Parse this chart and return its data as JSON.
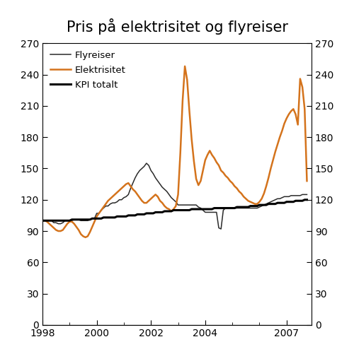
{
  "title": "Pris på elektrisitet og flyreiser",
  "ylim": [
    0,
    270
  ],
  "yticks": [
    0,
    30,
    60,
    90,
    120,
    150,
    180,
    210,
    240,
    270
  ],
  "xlim_start": 1998.0,
  "xlim_end": 2007.92,
  "xticks": [
    1998,
    2000,
    2002,
    2004,
    2007
  ],
  "xtick_labels": [
    "1998",
    "2000",
    "2002",
    "2004",
    "2007"
  ],
  "color_flyreiser": "#2a2a2a",
  "color_elektrisitet": "#D4731C",
  "color_kpi": "#000000",
  "lw_flyreiser": 1.1,
  "lw_elektrisitet": 1.8,
  "lw_kpi": 2.2,
  "legend_flyreiser": "Flyreiser",
  "legend_elektrisitet": "Elektrisitet",
  "legend_kpi": "KPI totalt",
  "title_fontsize": 15,
  "flyreiser": [
    100,
    100,
    100,
    100,
    100,
    98,
    98,
    97,
    97,
    98,
    100,
    100,
    100,
    100,
    101,
    101,
    101,
    100,
    100,
    100,
    100,
    101,
    102,
    102,
    107,
    107,
    110,
    112,
    114,
    114,
    116,
    117,
    117,
    118,
    120,
    120,
    122,
    123,
    125,
    131,
    136,
    141,
    145,
    148,
    150,
    152,
    155,
    153,
    148,
    145,
    141,
    138,
    135,
    132,
    130,
    128,
    125,
    122,
    120,
    118,
    115,
    115,
    115,
    115,
    115,
    115,
    115,
    115,
    115,
    113,
    112,
    110,
    108,
    108,
    108,
    108,
    108,
    108,
    93,
    92,
    110,
    112,
    112,
    112,
    112,
    112,
    112,
    112,
    112,
    112,
    112,
    112,
    112,
    112,
    112,
    112,
    113,
    114,
    115,
    116,
    117,
    118,
    119,
    120,
    121,
    121,
    122,
    123,
    123,
    123,
    124,
    124,
    124,
    124,
    124,
    125,
    125,
    125
  ],
  "elektrisitet": [
    100,
    100,
    99,
    97,
    95,
    93,
    91,
    90,
    90,
    91,
    94,
    97,
    99,
    99,
    97,
    94,
    91,
    87,
    85,
    84,
    85,
    89,
    94,
    99,
    104,
    107,
    110,
    113,
    116,
    119,
    121,
    123,
    125,
    127,
    129,
    131,
    133,
    135,
    136,
    133,
    130,
    128,
    125,
    122,
    119,
    117,
    117,
    119,
    121,
    123,
    125,
    123,
    119,
    117,
    114,
    112,
    111,
    109,
    111,
    114,
    125,
    165,
    215,
    248,
    235,
    205,
    178,
    157,
    140,
    134,
    138,
    148,
    158,
    163,
    167,
    163,
    160,
    156,
    153,
    148,
    146,
    143,
    141,
    138,
    136,
    133,
    131,
    128,
    126,
    123,
    121,
    119,
    118,
    117,
    116,
    116,
    118,
    121,
    126,
    133,
    141,
    150,
    158,
    166,
    173,
    180,
    186,
    193,
    198,
    202,
    205,
    207,
    202,
    192,
    236,
    228,
    207,
    138
  ],
  "kpi": [
    100,
    100,
    100,
    100,
    100,
    100,
    100,
    100,
    100,
    100,
    100,
    100,
    100,
    101,
    101,
    101,
    101,
    101,
    101,
    101,
    101,
    101,
    102,
    102,
    102,
    102,
    102,
    103,
    103,
    103,
    103,
    103,
    103,
    104,
    104,
    104,
    104,
    104,
    105,
    105,
    105,
    105,
    106,
    106,
    106,
    106,
    107,
    107,
    107,
    107,
    108,
    108,
    108,
    108,
    109,
    109,
    109,
    109,
    110,
    110,
    110,
    110,
    110,
    110,
    110,
    110,
    111,
    111,
    111,
    111,
    111,
    111,
    111,
    111,
    111,
    111,
    112,
    112,
    112,
    112,
    112,
    112,
    112,
    112,
    112,
    112,
    113,
    113,
    113,
    113,
    113,
    113,
    114,
    114,
    114,
    114,
    115,
    115,
    115,
    115,
    116,
    116,
    116,
    116,
    117,
    117,
    117,
    117,
    118,
    118,
    118,
    118,
    119,
    119,
    119,
    119,
    120,
    120
  ]
}
